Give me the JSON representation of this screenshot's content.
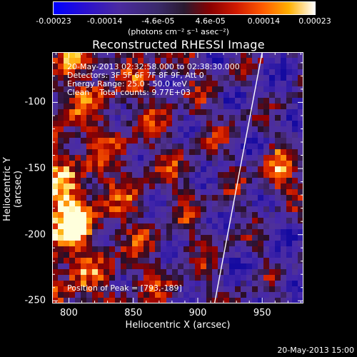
{
  "colorbar": {
    "ticks": [
      "-0.00023",
      "-0.00014",
      "-4.6e-05",
      "4.6e-05",
      "0.00014",
      "0.00023"
    ],
    "tick_values": [
      -0.00023,
      -0.00014,
      -4.6e-05,
      4.6e-05,
      0.00014,
      0.00023
    ],
    "units_label": "(photons cm⁻² s⁻¹ asec⁻²)"
  },
  "chart_data": {
    "type": "heatmap",
    "title": "Reconstructed RHESSI Image",
    "xlabel": "Heliocentric X (arcsec)",
    "ylabel": "Heliocentric Y (arcsec)",
    "xlim": [
      787,
      982
    ],
    "ylim": [
      -252,
      -62
    ],
    "xticks": [
      800,
      850,
      900,
      950
    ],
    "yticks": [
      -100,
      -150,
      -200,
      -250
    ],
    "colormap": "blue-purple-red-yellow-white",
    "value_range": [
      -0.00023,
      0.00023
    ],
    "annotations": [
      "20-May-2013 02:32:58.000 to 02:38:30.000",
      "Detectors: 3F 5F 6F 7F 8F 9F, Att 0",
      "Energy Range: 25.0 - 50.0 keV",
      "Clean    Total counts: 9.77E+03"
    ],
    "peak_label": "Position of Peak = [793,-189]",
    "peak": [
      793,
      -189
    ],
    "limb_line": [
      [
        913,
        -252
      ],
      [
        950,
        -62
      ]
    ]
  },
  "timestamp": "20-May-2013 15:00"
}
